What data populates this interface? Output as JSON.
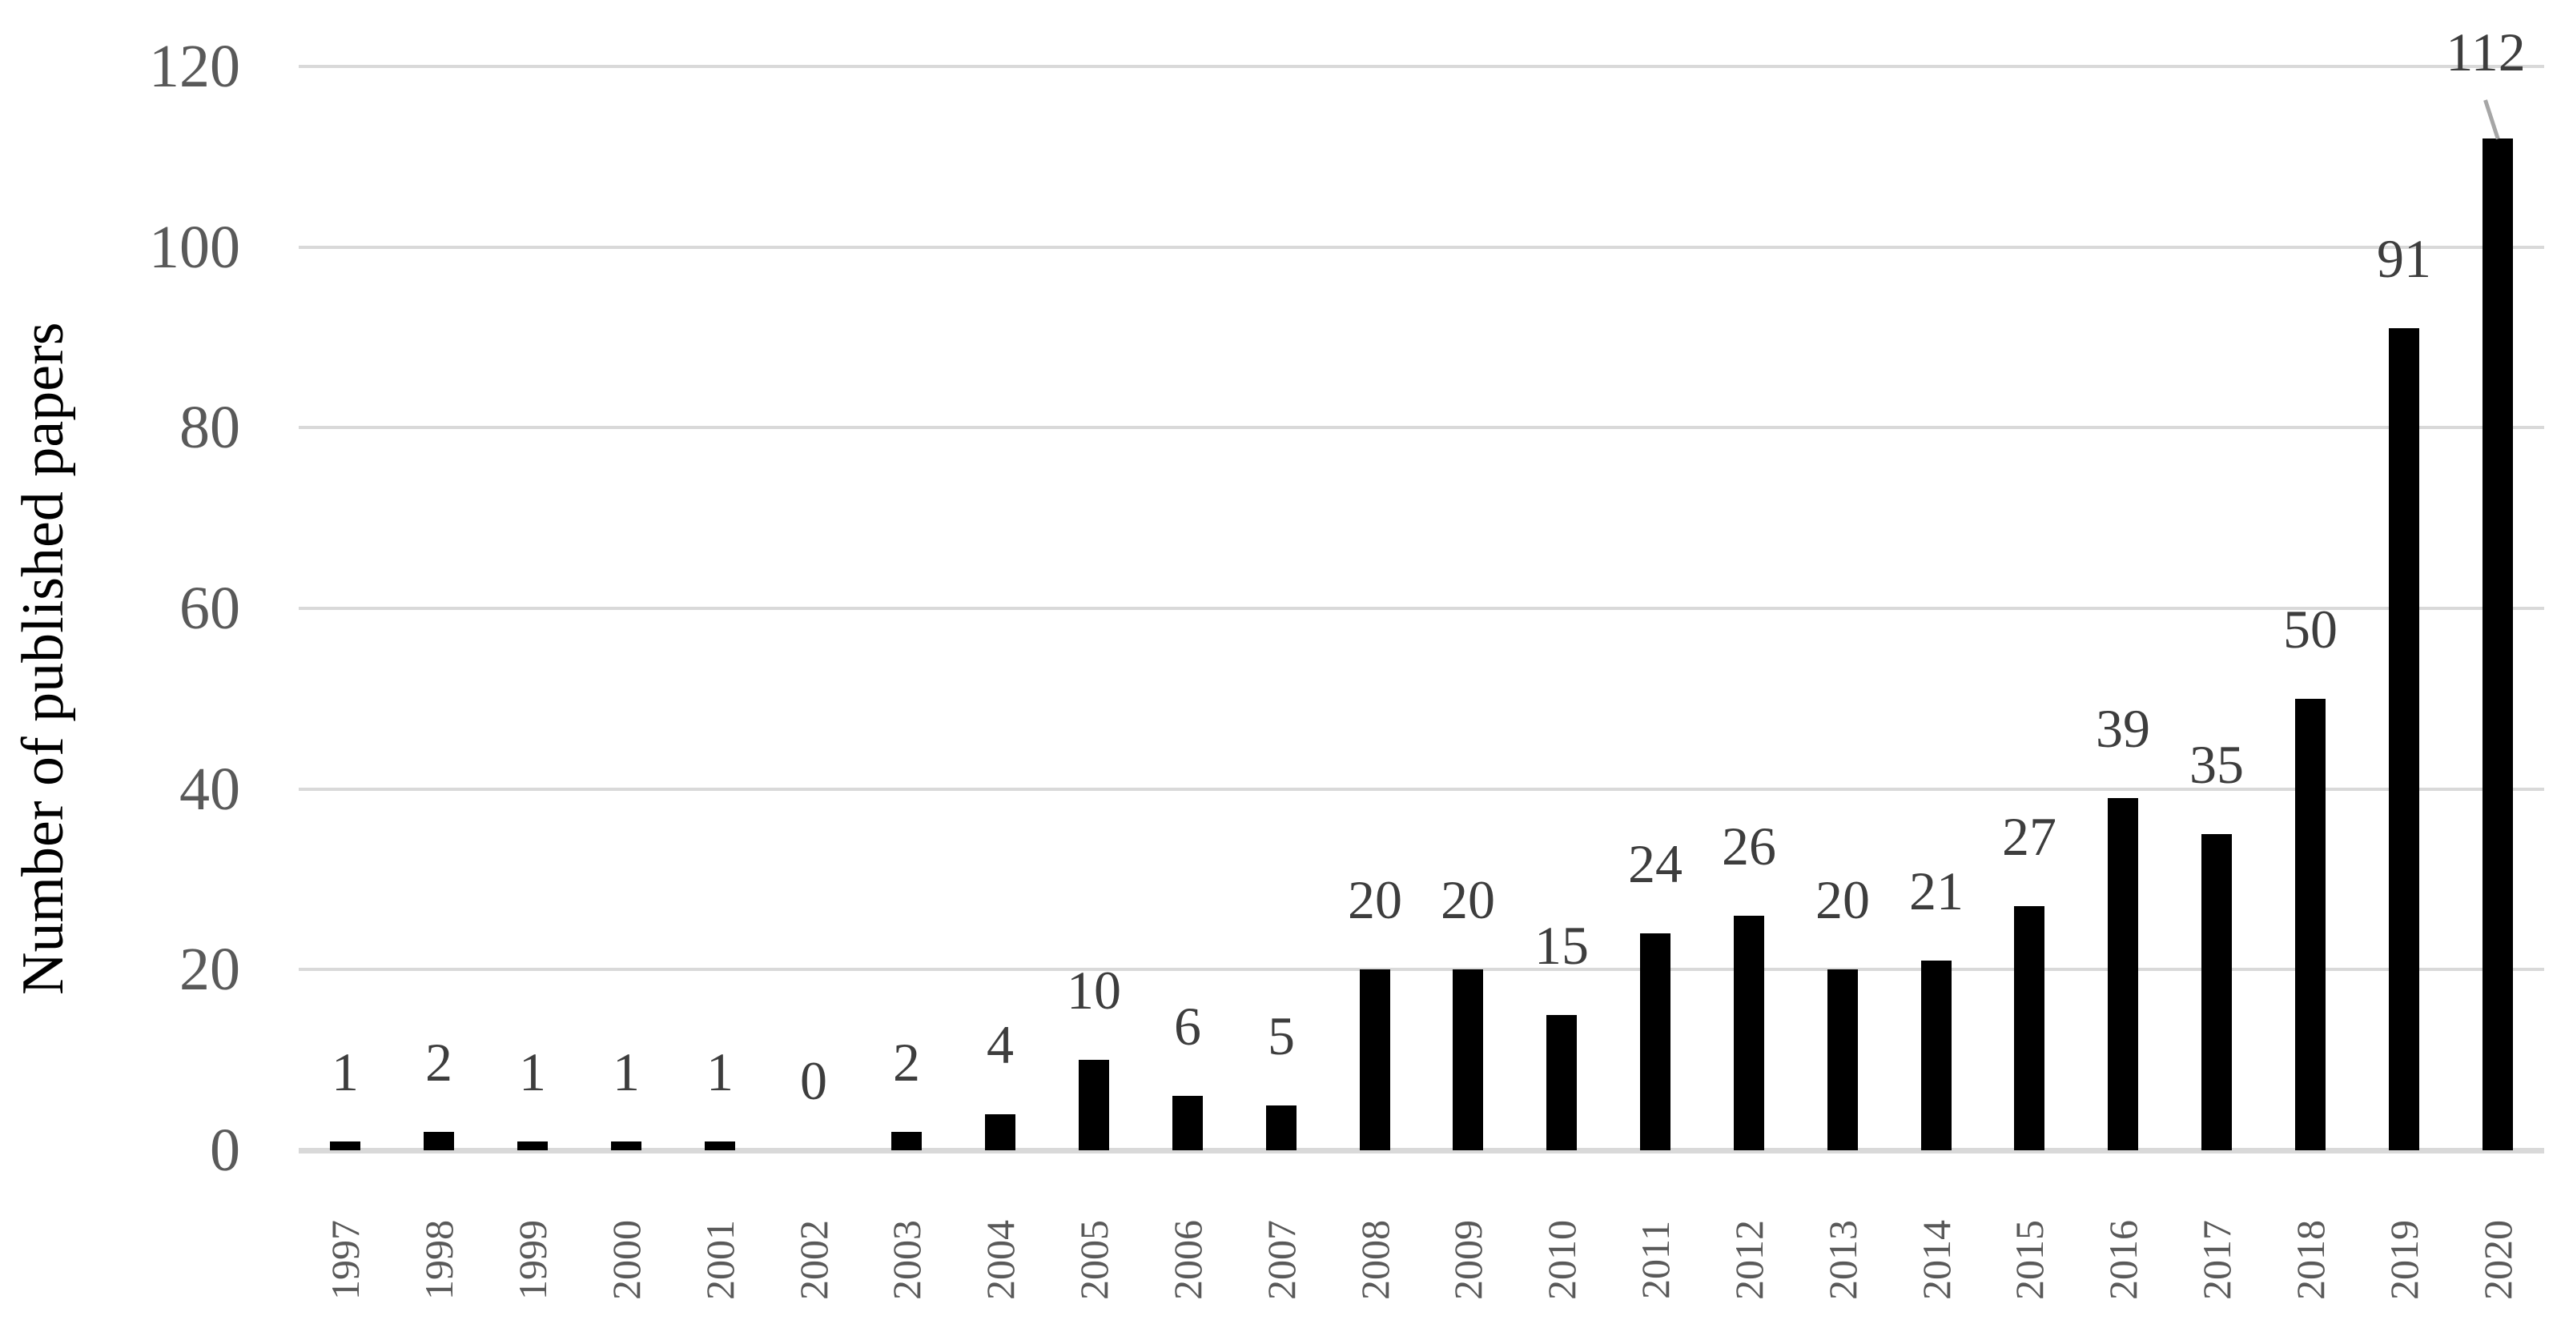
{
  "chart_data": {
    "type": "bar",
    "title": "",
    "ylabel": "Number of published papers",
    "xlabel": "",
    "categories": [
      "1997",
      "1998",
      "1999",
      "2000",
      "2001",
      "2002",
      "2003",
      "2004",
      "2005",
      "2006",
      "2007",
      "2008",
      "2009",
      "2010",
      "2011",
      "2012",
      "2013",
      "2014",
      "2015",
      "2016",
      "2017",
      "2018",
      "2019",
      "2020"
    ],
    "values": [
      1,
      2,
      1,
      1,
      1,
      0,
      2,
      4,
      10,
      6,
      5,
      20,
      20,
      15,
      24,
      26,
      20,
      21,
      27,
      39,
      35,
      50,
      91,
      112
    ],
    "data_labels_shown": true,
    "ylim": [
      0,
      120
    ],
    "yticks": [
      0,
      20,
      40,
      60,
      80,
      100,
      120
    ],
    "grid": "horizontal",
    "legend": "none",
    "x_tick_label_rotation_degrees": 90,
    "colors": {
      "bar": "#000000",
      "gridline": "#d9d9d9",
      "axis_line": "#d9d9d9",
      "y_tick_label": "#595959",
      "x_tick_label": "#595959",
      "data_label": "#3d3d3d",
      "axis_title": "#000000",
      "leader_line": "#a6a6a6",
      "background": "#ffffff"
    },
    "annotations": {
      "leader_line_category": "2020",
      "leader_line_note": "data label 112 raised above top gridline, connected to bar top by short gray diagonal line"
    }
  }
}
